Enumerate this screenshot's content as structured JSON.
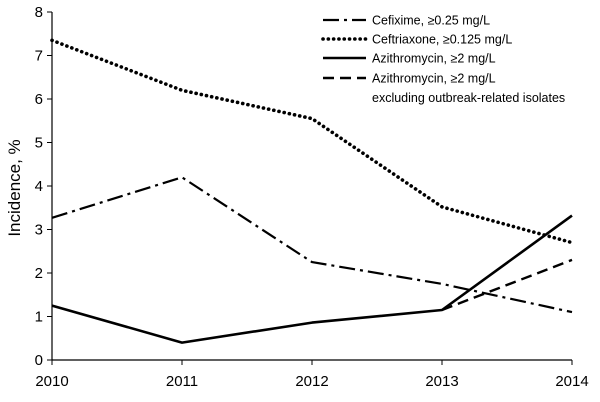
{
  "chart_data": {
    "type": "line",
    "x": [
      2010,
      2011,
      2012,
      2013,
      2014
    ],
    "xlim": [
      2010,
      2014
    ],
    "ylim": [
      0,
      8
    ],
    "yticks": [
      0,
      1,
      2,
      3,
      4,
      5,
      6,
      7,
      8
    ],
    "xticks": [
      "2010",
      "2011",
      "2012",
      "2013",
      "2014"
    ],
    "ylabel": "Incidence, %",
    "xlabel": "",
    "grid": false,
    "legend_position": "top-right",
    "series": [
      {
        "name": "Cefixime, ≥0.25 mg/L",
        "style": "dash-dot",
        "x": [
          2010,
          2011,
          2012,
          2013,
          2014
        ],
        "values": [
          3.27,
          4.2,
          2.25,
          1.75,
          1.1
        ]
      },
      {
        "name": "Ceftriaxone, ≥0.125 mg/L",
        "style": "dotted",
        "x": [
          2010,
          2011,
          2012,
          2013,
          2014
        ],
        "values": [
          7.35,
          6.2,
          5.55,
          3.52,
          2.7
        ]
      },
      {
        "name": "Azithromycin, ≥2 mg/L",
        "style": "solid",
        "x": [
          2010,
          2011,
          2012,
          2013,
          2014
        ],
        "values": [
          1.25,
          0.4,
          0.86,
          1.15,
          3.32
        ]
      },
      {
        "name": "Azithromycin, ≥2 mg/L",
        "name_line2": "excluding outbreak-related isolates",
        "style": "dashed",
        "x": [
          2013,
          2014
        ],
        "values": [
          1.15,
          2.3
        ]
      }
    ]
  }
}
